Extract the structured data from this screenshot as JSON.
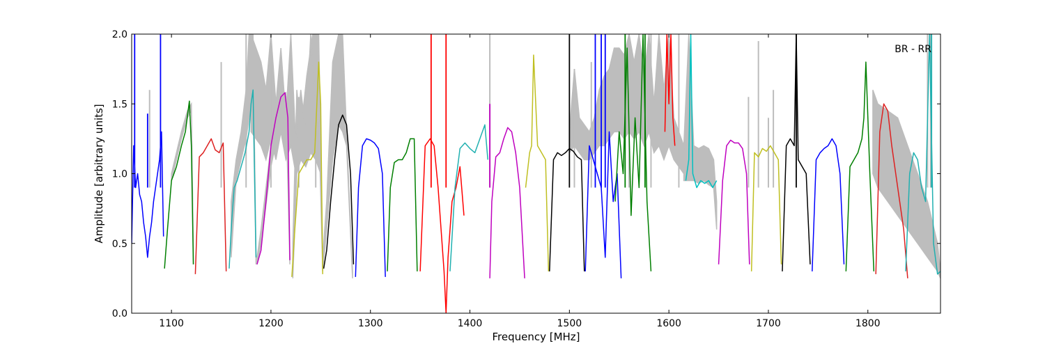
{
  "chart_data": {
    "type": "line",
    "title": "",
    "xlabel": "Frequency [MHz]",
    "ylabel": "Amplitude [arbitrary units]",
    "annotation": "BR - RR",
    "xlim": [
      1060,
      1873
    ],
    "ylim": [
      0.0,
      2.0
    ],
    "xticks": [
      1100,
      1200,
      1300,
      1400,
      1500,
      1600,
      1700,
      1800
    ],
    "yticks": [
      0.0,
      0.5,
      1.0,
      1.5,
      2.0
    ],
    "xtick_labels": [
      "1100",
      "1200",
      "1300",
      "1400",
      "1500",
      "1600",
      "1700",
      "1800"
    ],
    "ytick_labels": [
      "0.0",
      "0.5",
      "1.0",
      "1.5",
      "2.0"
    ],
    "grid": false,
    "background_color": "#bdbdbd",
    "colors": {
      "blue": "#0000ff",
      "green": "#007f00",
      "red": "#ff0000",
      "red_light": "#dd2020",
      "cyan": "#20b0b0",
      "cyan_bright": "#00c0c0",
      "magenta": "#bf00bf",
      "olive": "#bfbf20",
      "black": "#000000"
    },
    "background": [
      {
        "x": [
          1100,
          1110,
          1116,
          1120,
          1122
        ],
        "hi": [
          1.0,
          1.3,
          1.45,
          1.5,
          0.45
        ],
        "lo": [
          0.95,
          1.25,
          1.4,
          1.45,
          0.35
        ]
      },
      {
        "x": [
          1160,
          1165,
          1170,
          1175,
          1178,
          1182,
          1185
        ],
        "hi": [
          0.8,
          1.1,
          1.3,
          1.6,
          2.0,
          2.0,
          0.4
        ],
        "lo": [
          0.4,
          0.95,
          1.1,
          1.25,
          1.4,
          1.6,
          0.35
        ]
      },
      {
        "x": [
          1186,
          1190,
          1200,
          1210,
          1215,
          1219
        ],
        "hi": [
          0.4,
          0.6,
          1.2,
          1.55,
          1.58,
          0.4
        ],
        "lo": [
          0.35,
          0.5,
          1.05,
          1.4,
          1.5,
          0.35
        ]
      },
      {
        "x": [
          1222,
          1226,
          1230,
          1236,
          1242,
          1248,
          1252
        ],
        "hi": [
          0.5,
          1.6,
          1.3,
          1.7,
          2.0,
          2.0,
          0.4
        ],
        "lo": [
          0.25,
          1.0,
          1.1,
          1.2,
          1.3,
          1.4,
          0.3
        ]
      },
      {
        "x": [
          1252,
          1256,
          1262,
          1268,
          1272,
          1276,
          1282
        ],
        "hi": [
          0.4,
          0.8,
          1.8,
          2.0,
          2.0,
          1.3,
          0.3
        ],
        "lo": [
          0.3,
          0.6,
          1.1,
          1.35,
          1.3,
          1.2,
          0.25
        ]
      },
      {
        "x": [
          1180,
          1190,
          1195,
          1200,
          1205,
          1210,
          1215,
          1220,
          1225,
          1230,
          1235,
          1240,
          1245,
          1250
        ],
        "hi": [
          2.0,
          1.8,
          1.6,
          2.0,
          1.5,
          1.9,
          1.4,
          2.0,
          1.2,
          1.6,
          1.3,
          2.0,
          1.5,
          1.2
        ],
        "lo": [
          1.3,
          1.2,
          1.1,
          1.25,
          1.1,
          1.3,
          1.1,
          1.2,
          1.0,
          1.1,
          1.05,
          1.15,
          1.1,
          1.0
        ]
      },
      {
        "x": [
          1500,
          1505,
          1510,
          1515,
          1520,
          1525,
          1530,
          1535,
          1540,
          1545,
          1550,
          1555,
          1560,
          1565,
          1570,
          1575,
          1580,
          1585,
          1590,
          1595,
          1600,
          1605,
          1610,
          1615
        ],
        "hi": [
          1.3,
          1.75,
          1.4,
          1.35,
          1.3,
          1.4,
          1.6,
          1.7,
          1.75,
          1.9,
          1.9,
          1.85,
          2.0,
          1.8,
          2.0,
          1.7,
          2.0,
          1.5,
          2.0,
          1.6,
          2.0,
          1.4,
          1.3,
          1.2
        ],
        "lo": [
          1.15,
          1.2,
          1.15,
          1.1,
          1.1,
          1.15,
          1.2,
          1.2,
          1.25,
          1.3,
          1.3,
          1.25,
          1.3,
          1.25,
          1.3,
          1.2,
          1.3,
          1.15,
          1.2,
          1.1,
          1.2,
          1.1,
          1.05,
          1.0
        ]
      },
      {
        "x": [
          1615,
          1620,
          1625,
          1630,
          1635,
          1640,
          1645,
          1648
        ],
        "hi": [
          1.2,
          2.0,
          1.2,
          1.18,
          1.2,
          1.18,
          1.1,
          0.8
        ],
        "lo": [
          0.95,
          0.95,
          0.95,
          0.93,
          0.95,
          0.92,
          0.9,
          0.6
        ]
      },
      {
        "x": [
          1805,
          1810,
          1820,
          1830,
          1840,
          1850,
          1860,
          1870,
          1873
        ],
        "hi": [
          1.6,
          1.5,
          1.45,
          1.4,
          1.2,
          1.0,
          0.8,
          0.5,
          0.3
        ],
        "lo": [
          1.0,
          0.9,
          0.8,
          0.7,
          0.6,
          0.5,
          0.4,
          0.3,
          0.25
        ]
      }
    ],
    "background_spikes": [
      {
        "x": 1078,
        "y": 1.6
      },
      {
        "x": 1150,
        "y": 1.8
      },
      {
        "x": 1175,
        "y": 2.0
      },
      {
        "x": 1200,
        "y": 2.0
      },
      {
        "x": 1228,
        "y": 1.55
      },
      {
        "x": 1245,
        "y": 2.0
      },
      {
        "x": 1420,
        "y": 2.0
      },
      {
        "x": 1505,
        "y": 1.75
      },
      {
        "x": 1522,
        "y": 1.8
      },
      {
        "x": 1560,
        "y": 2.0
      },
      {
        "x": 1582,
        "y": 2.0
      },
      {
        "x": 1610,
        "y": 2.0
      },
      {
        "x": 1680,
        "y": 1.55
      },
      {
        "x": 1690,
        "y": 1.95
      },
      {
        "x": 1700,
        "y": 1.4
      },
      {
        "x": 1705,
        "y": 1.6
      },
      {
        "x": 1860,
        "y": 2.0
      },
      {
        "x": 1863,
        "y": 2.0
      }
    ],
    "series": [
      {
        "color": "blue",
        "x": [
          1060,
          1062,
          1064,
          1066,
          1068,
          1070,
          1072,
          1074,
          1076,
          1078,
          1080,
          1082,
          1084,
          1086,
          1088,
          1090,
          1092
        ],
        "y": [
          0.5,
          1.2,
          0.9,
          1.0,
          0.85,
          0.8,
          0.65,
          0.55,
          0.4,
          0.55,
          0.65,
          0.8,
          0.9,
          1.0,
          1.1,
          1.3,
          0.55
        ]
      },
      {
        "color": "green",
        "x": [
          1093,
          1096,
          1100,
          1105,
          1110,
          1114,
          1118,
          1120,
          1122
        ],
        "y": [
          0.32,
          0.6,
          0.95,
          1.05,
          1.2,
          1.3,
          1.52,
          1.2,
          0.35
        ]
      },
      {
        "color": "red_light",
        "x": [
          1124,
          1126,
          1128,
          1132,
          1136,
          1140,
          1144,
          1148,
          1152,
          1155
        ],
        "y": [
          0.28,
          0.7,
          1.12,
          1.15,
          1.2,
          1.25,
          1.17,
          1.15,
          1.22,
          0.3
        ]
      },
      {
        "color": "cyan",
        "x": [
          1158,
          1160,
          1163,
          1166,
          1170,
          1174,
          1178,
          1180,
          1182,
          1185
        ],
        "y": [
          0.32,
          0.6,
          0.9,
          0.95,
          1.05,
          1.15,
          1.3,
          1.5,
          1.6,
          0.4
        ]
      },
      {
        "color": "magenta",
        "x": [
          1186,
          1190,
          1195,
          1200,
          1205,
          1210,
          1214,
          1217,
          1219
        ],
        "y": [
          0.35,
          0.45,
          0.8,
          1.2,
          1.4,
          1.55,
          1.58,
          1.4,
          0.38
        ]
      },
      {
        "color": "olive",
        "x": [
          1221,
          1224,
          1228,
          1232,
          1236,
          1240,
          1244,
          1248,
          1250,
          1252
        ],
        "y": [
          0.26,
          0.6,
          1.0,
          1.05,
          1.1,
          1.1,
          1.15,
          1.8,
          1.5,
          0.28
        ]
      },
      {
        "color": "black",
        "x": [
          1253,
          1256,
          1260,
          1264,
          1268,
          1272,
          1276,
          1280,
          1283
        ],
        "y": [
          0.32,
          0.45,
          0.8,
          1.1,
          1.35,
          1.42,
          1.35,
          1.0,
          0.35
        ]
      },
      {
        "color": "blue",
        "x": [
          1285,
          1288,
          1292,
          1296,
          1300,
          1304,
          1308,
          1312,
          1315
        ],
        "y": [
          0.26,
          0.9,
          1.2,
          1.25,
          1.24,
          1.22,
          1.18,
          1.0,
          0.26
        ]
      },
      {
        "color": "green",
        "x": [
          1317,
          1320,
          1324,
          1328,
          1332,
          1336,
          1340,
          1344,
          1347
        ],
        "y": [
          0.3,
          0.9,
          1.08,
          1.1,
          1.1,
          1.15,
          1.25,
          1.25,
          0.3
        ]
      },
      {
        "color": "red",
        "x": [
          1350,
          1355,
          1360,
          1364,
          1368,
          1372,
          1374,
          1376,
          1378,
          1382,
          1386,
          1390,
          1394
        ],
        "y": [
          0.3,
          1.2,
          1.25,
          1.2,
          0.9,
          0.5,
          0.3,
          0.0,
          0.4,
          0.8,
          0.9,
          1.05,
          0.7
        ]
      },
      {
        "color": "cyan",
        "x": [
          1380,
          1385,
          1390,
          1395,
          1400,
          1405,
          1410,
          1415,
          1418
        ],
        "y": [
          0.3,
          0.9,
          1.18,
          1.22,
          1.18,
          1.15,
          1.25,
          1.35,
          1.1
        ]
      },
      {
        "color": "magenta",
        "x": [
          1420,
          1422,
          1426,
          1430,
          1434,
          1438,
          1442,
          1446,
          1450,
          1455
        ],
        "y": [
          0.25,
          0.8,
          1.12,
          1.15,
          1.25,
          1.33,
          1.3,
          1.15,
          0.9,
          0.25
        ]
      },
      {
        "color": "olive",
        "x": [
          1456,
          1460,
          1462,
          1464,
          1468,
          1472,
          1476,
          1479
        ],
        "y": [
          0.9,
          1.15,
          1.2,
          1.85,
          1.2,
          1.15,
          1.1,
          0.3
        ]
      },
      {
        "color": "black",
        "x": [
          1480,
          1484,
          1488,
          1492,
          1496,
          1500,
          1504,
          1508,
          1512,
          1515
        ],
        "y": [
          0.3,
          1.1,
          1.15,
          1.13,
          1.15,
          1.18,
          1.16,
          1.12,
          1.1,
          0.3
        ]
      },
      {
        "color": "blue",
        "x": [
          1516,
          1520,
          1524,
          1528,
          1532,
          1536,
          1540,
          1544,
          1548,
          1552
        ],
        "y": [
          0.3,
          1.2,
          1.1,
          1.0,
          0.9,
          0.4,
          1.3,
          0.8,
          1.0,
          0.25
        ]
      },
      {
        "color": "green",
        "x": [
          1546,
          1550,
          1554,
          1558,
          1562,
          1566,
          1570,
          1574,
          1578,
          1582
        ],
        "y": [
          0.8,
          1.3,
          1.0,
          1.9,
          0.7,
          1.4,
          0.9,
          2.0,
          0.8,
          0.3
        ]
      },
      {
        "color": "red",
        "x": [
          1596,
          1598,
          1600,
          1602,
          1604,
          1606
        ],
        "y": [
          1.3,
          2.0,
          1.5,
          2.0,
          1.4,
          1.2
        ]
      },
      {
        "color": "cyan_bright",
        "x": [
          1617,
          1620,
          1622,
          1624,
          1628,
          1632,
          1636,
          1640,
          1644,
          1648
        ],
        "y": [
          0.95,
          1.1,
          2.0,
          1.0,
          0.9,
          0.95,
          0.93,
          0.95,
          0.9,
          0.95
        ]
      },
      {
        "color": "magenta",
        "x": [
          1650,
          1654,
          1658,
          1662,
          1666,
          1670,
          1674,
          1678,
          1681
        ],
        "y": [
          0.35,
          0.95,
          1.2,
          1.24,
          1.22,
          1.22,
          1.18,
          1.0,
          0.35
        ]
      },
      {
        "color": "olive",
        "x": [
          1683,
          1686,
          1690,
          1694,
          1698,
          1702,
          1706,
          1710,
          1713
        ],
        "y": [
          0.3,
          1.15,
          1.12,
          1.18,
          1.16,
          1.2,
          1.15,
          1.1,
          0.35
        ]
      },
      {
        "color": "black",
        "x": [
          1714,
          1718,
          1722,
          1726,
          1728,
          1730,
          1734,
          1738,
          1742
        ],
        "y": [
          0.3,
          1.2,
          1.25,
          1.2,
          2.0,
          1.1,
          1.05,
          1.0,
          0.35
        ]
      },
      {
        "color": "blue",
        "x": [
          1744,
          1748,
          1752,
          1756,
          1760,
          1764,
          1768,
          1772,
          1776
        ],
        "y": [
          0.3,
          1.1,
          1.15,
          1.18,
          1.2,
          1.25,
          1.2,
          1.0,
          0.35
        ]
      },
      {
        "color": "green",
        "x": [
          1778,
          1782,
          1786,
          1790,
          1794,
          1796,
          1798,
          1802,
          1806
        ],
        "y": [
          0.3,
          1.05,
          1.1,
          1.15,
          1.25,
          1.4,
          1.8,
          1.0,
          0.3
        ]
      },
      {
        "color": "red_light",
        "x": [
          1808,
          1812,
          1816,
          1820,
          1824,
          1828,
          1832,
          1836,
          1840
        ],
        "y": [
          0.28,
          1.3,
          1.5,
          1.45,
          1.2,
          1.0,
          0.8,
          0.6,
          0.25
        ]
      },
      {
        "color": "cyan",
        "x": [
          1838,
          1842,
          1846,
          1850,
          1854,
          1858,
          1862,
          1866,
          1870,
          1873
        ],
        "y": [
          0.3,
          1.0,
          1.15,
          1.1,
          0.9,
          0.8,
          2.0,
          0.5,
          0.28,
          0.3
        ]
      }
    ],
    "spikes": [
      {
        "color": "blue",
        "x": 1063,
        "y": 2.0
      },
      {
        "color": "blue",
        "x": 1076,
        "y": 1.43
      },
      {
        "color": "blue",
        "x": 1089,
        "y": 2.0
      },
      {
        "color": "red",
        "x": 1361,
        "y": 2.0
      },
      {
        "color": "red",
        "x": 1376,
        "y": 2.0
      },
      {
        "color": "magenta",
        "x": 1420,
        "y": 1.5
      },
      {
        "color": "black",
        "x": 1500,
        "y": 2.0
      },
      {
        "color": "blue",
        "x": 1526,
        "y": 2.0
      },
      {
        "color": "blue",
        "x": 1532,
        "y": 2.0
      },
      {
        "color": "blue",
        "x": 1536,
        "y": 2.0
      },
      {
        "color": "green",
        "x": 1556,
        "y": 2.0
      },
      {
        "color": "green",
        "x": 1576,
        "y": 2.0
      },
      {
        "color": "black",
        "x": 1728,
        "y": 2.0
      },
      {
        "color": "cyan",
        "x": 1864,
        "y": 2.0
      }
    ]
  }
}
